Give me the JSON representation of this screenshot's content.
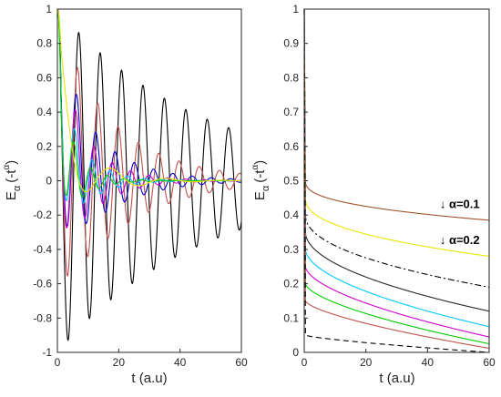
{
  "chart_data": [
    {
      "type": "line",
      "xlabel": "t (a.u)",
      "ylabel_main": "E",
      "ylabel_sub": "α",
      "ylabel_arg": "(-t",
      "ylabel_sup": "α",
      "ylabel_close": ")",
      "xlim": [
        0,
        60
      ],
      "ylim": [
        -1,
        1
      ],
      "xticks": [
        "0",
        "20",
        "40",
        "60"
      ],
      "xtick_values": [
        0,
        20,
        40,
        60
      ],
      "yticks": [
        "-1",
        "-0.8",
        "-0.6",
        "-0.4",
        "-0.2",
        "0",
        "0.2",
        "0.4",
        "0.6",
        "0.8",
        "1"
      ],
      "ytick_values": [
        -1,
        -0.8,
        -0.6,
        -0.4,
        -0.2,
        0,
        0.2,
        0.4,
        0.6,
        0.8,
        1
      ],
      "grid": false,
      "series": [
        {
          "color": "#000000",
          "style": "solid",
          "amplitude": 1.0,
          "omega": 0.9,
          "decay": 0.06,
          "phase": 0
        },
        {
          "color": "#c0504d",
          "style": "solid",
          "amplitude": 0.8,
          "omega": 0.95,
          "decay": 0.14,
          "phase": 0
        },
        {
          "color": "#0000cc",
          "style": "solid",
          "amplitude": 0.6,
          "omega": 1.0,
          "decay": 0.2,
          "phase": 0
        },
        {
          "color": "#cc00cc",
          "style": "solid",
          "amplitude": 0.6,
          "omega": 1.05,
          "decay": 0.28,
          "phase": 0
        },
        {
          "color": "#00c8ff",
          "style": "solid",
          "amplitude": 0.45,
          "omega": 1.1,
          "decay": 0.35,
          "phase": 0
        },
        {
          "color": "#00cc00",
          "style": "solid",
          "amplitude": 0.4,
          "omega": 1.15,
          "decay": 0.45,
          "phase": 0
        },
        {
          "color": "#e6e600",
          "style": "solid",
          "amplitude": 0.3,
          "omega": 0.35,
          "decay": 0.25,
          "phase": 0
        }
      ]
    },
    {
      "type": "line",
      "xlabel": "t (a.u)",
      "ylabel_main": "E",
      "ylabel_sub": "α",
      "ylabel_arg": "(-t",
      "ylabel_sup": "α",
      "ylabel_close": ")",
      "xlim": [
        0,
        60
      ],
      "ylim": [
        0,
        1
      ],
      "xticks": [
        "0",
        "20",
        "40",
        "60"
      ],
      "xtick_values": [
        0,
        20,
        40,
        60
      ],
      "yticks": [
        "0",
        "0.1",
        "0.2",
        "0.3",
        "0.4",
        "0.5",
        "0.6",
        "0.7",
        "0.8",
        "0.9",
        "1"
      ],
      "ytick_values": [
        0,
        0.1,
        0.2,
        0.3,
        0.4,
        0.5,
        0.6,
        0.7,
        0.8,
        0.9,
        1
      ],
      "grid": false,
      "annotations": [
        {
          "text": "↓ α=0.1",
          "x": 44,
          "y": 0.42
        },
        {
          "text": "↓ α=0.2",
          "x": 44,
          "y": 0.315
        }
      ],
      "series": [
        {
          "color": "#a0522d",
          "style": "solid",
          "alpha": 0.1,
          "y_at_60": 0.385
        },
        {
          "color": "#e6e600",
          "style": "solid",
          "alpha": 0.2,
          "y_at_60": 0.28
        },
        {
          "color": "#000000",
          "style": "dashdot",
          "alpha": 0.3,
          "y_at_60": 0.19
        },
        {
          "color": "#262626",
          "style": "solid",
          "alpha": 0.4,
          "y_at_60": 0.12
        },
        {
          "color": "#00c8ff",
          "style": "solid",
          "alpha": 0.5,
          "y_at_60": 0.075
        },
        {
          "color": "#cc00cc",
          "style": "solid",
          "alpha": 0.6,
          "y_at_60": 0.045
        },
        {
          "color": "#00cc00",
          "style": "solid",
          "alpha": 0.7,
          "y_at_60": 0.025
        },
        {
          "color": "#c0504d",
          "style": "solid",
          "alpha": 0.8,
          "y_at_60": 0.012
        },
        {
          "color": "#000000",
          "style": "dashed",
          "alpha": 1.0,
          "y_at_60": 0.0
        }
      ]
    }
  ]
}
